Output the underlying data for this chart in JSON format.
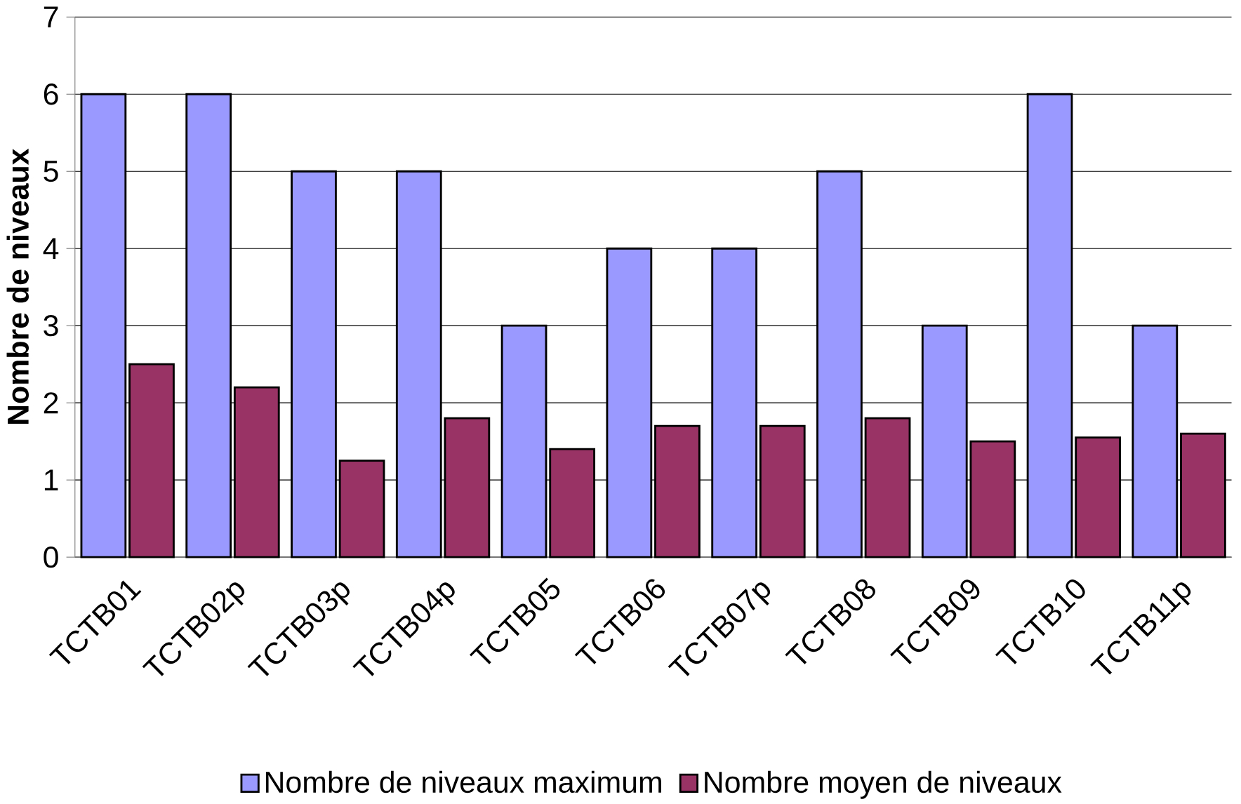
{
  "chart_data": {
    "type": "bar",
    "ylabel": "Nombre de niveaux",
    "categories": [
      "TCTB01",
      "TCTB02p",
      "TCTB03p",
      "TCTB04p",
      "TCTB05",
      "TCTB06",
      "TCTB07p",
      "TCTB08",
      "TCTB09",
      "TCTB10",
      "TCTB11p"
    ],
    "series": [
      {
        "name": "Nombre de niveaux maximum",
        "color": "#9999ff",
        "values": [
          6,
          6,
          5,
          5,
          3,
          4,
          4,
          5,
          3,
          6,
          3
        ]
      },
      {
        "name": "Nombre moyen de niveaux",
        "color": "#993366",
        "values": [
          2.5,
          2.2,
          1.25,
          1.8,
          1.4,
          1.7,
          1.7,
          1.8,
          1.5,
          1.55,
          1.6
        ]
      }
    ],
    "ylim": [
      0,
      7
    ],
    "yticks": [
      0,
      1,
      2,
      3,
      4,
      5,
      6,
      7
    ],
    "grid": "y",
    "legend": "bottom"
  }
}
